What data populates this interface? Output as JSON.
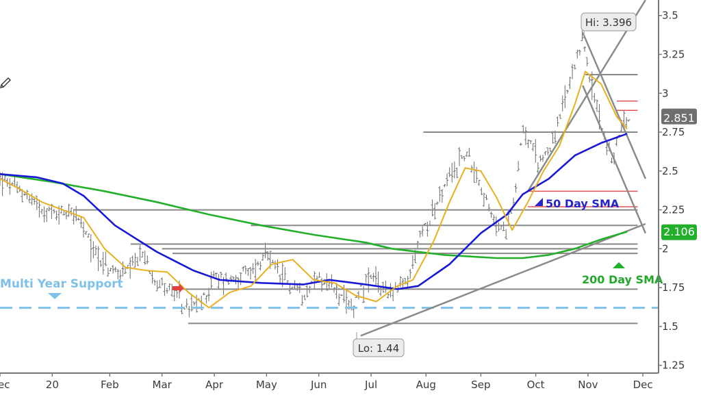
{
  "chart_data": {
    "type": "ohlc",
    "y_axis": {
      "min": 1.2,
      "max": 3.6,
      "position": "right",
      "ticks": [
        {
          "v": 1.25,
          "label": "1.25"
        },
        {
          "v": 1.5,
          "label": "1.5"
        },
        {
          "v": 1.75,
          "label": "1.75"
        },
        {
          "v": 2,
          "label": "2"
        },
        {
          "v": 2.25,
          "label": "2.25"
        },
        {
          "v": 2.5,
          "label": "2.5"
        },
        {
          "v": 2.75,
          "label": "2.75"
        },
        {
          "v": 3,
          "label": "3"
        },
        {
          "v": 3.25,
          "label": "3.25"
        },
        {
          "v": 3.5,
          "label": "3.5"
        }
      ]
    },
    "x_axis": {
      "min": 0,
      "max": 12.6,
      "labels": [
        {
          "v": 0,
          "label": "Dec"
        },
        {
          "v": 1,
          "label": "20"
        },
        {
          "v": 2.1,
          "label": "Feb"
        },
        {
          "v": 3.1,
          "label": "Mar"
        },
        {
          "v": 4.1,
          "label": "Apr"
        },
        {
          "v": 5.1,
          "label": "May"
        },
        {
          "v": 6.1,
          "label": "Jun"
        },
        {
          "v": 7.1,
          "label": "Jul"
        },
        {
          "v": 8.15,
          "label": "Aug"
        },
        {
          "v": 9.2,
          "label": "Sep"
        },
        {
          "v": 10.25,
          "label": "Oct"
        },
        {
          "v": 11.25,
          "label": "Nov"
        },
        {
          "v": 12.3,
          "label": "Dec"
        }
      ]
    },
    "price_path": [
      [
        0,
        2.45
      ],
      [
        0.5,
        2.35
      ],
      [
        1,
        2.22
      ],
      [
        1.4,
        2.25
      ],
      [
        1.7,
        2.05
      ],
      [
        2.1,
        1.85
      ],
      [
        2.5,
        1.85
      ],
      [
        2.7,
        1.97
      ],
      [
        3,
        1.8
      ],
      [
        3.3,
        1.72
      ],
      [
        3.6,
        1.6
      ],
      [
        3.9,
        1.68
      ],
      [
        4.1,
        1.82
      ],
      [
        4.4,
        1.8
      ],
      [
        4.8,
        1.85
      ],
      [
        5.1,
        1.95
      ],
      [
        5.4,
        1.8
      ],
      [
        5.8,
        1.72
      ],
      [
        6.1,
        1.82
      ],
      [
        6.4,
        1.74
      ],
      [
        6.7,
        1.6
      ],
      [
        6.9,
        1.75
      ],
      [
        7.1,
        1.8
      ],
      [
        7.5,
        1.72
      ],
      [
        7.8,
        1.78
      ],
      [
        8.05,
        2.1
      ],
      [
        8.3,
        2.25
      ],
      [
        8.6,
        2.45
      ],
      [
        8.9,
        2.62
      ],
      [
        9.1,
        2.5
      ],
      [
        9.4,
        2.2
      ],
      [
        9.65,
        2.1
      ],
      [
        9.85,
        2.35
      ],
      [
        10,
        2.78
      ],
      [
        10.3,
        2.55
      ],
      [
        10.6,
        2.7
      ],
      [
        10.8,
        2.95
      ],
      [
        11.05,
        3.2
      ],
      [
        11.15,
        3.39
      ],
      [
        11.3,
        3.05
      ],
      [
        11.5,
        2.82
      ],
      [
        11.7,
        2.55
      ],
      [
        11.9,
        2.8
      ],
      [
        12.05,
        2.85
      ]
    ],
    "series": [
      {
        "name": "50 Day SMA",
        "color": "#1818d8",
        "x": [
          0,
          0.7,
          1.2,
          1.6,
          2.2,
          3,
          3.7,
          4.2,
          5,
          5.8,
          6.3,
          7,
          7.6,
          8,
          8.6,
          9.2,
          9.7,
          10,
          10.5,
          11,
          11.5,
          12
        ],
        "y": [
          2.48,
          2.46,
          2.42,
          2.34,
          2.15,
          1.98,
          1.86,
          1.8,
          1.78,
          1.77,
          1.8,
          1.77,
          1.74,
          1.76,
          1.9,
          2.1,
          2.22,
          2.35,
          2.45,
          2.6,
          2.68,
          2.74
        ]
      },
      {
        "name": "",
        "color": "#e8b020",
        "x": [
          0,
          0.4,
          0.8,
          1.2,
          1.6,
          2,
          2.4,
          2.8,
          3.2,
          3.6,
          4,
          4.4,
          4.8,
          5.2,
          5.6,
          6,
          6.4,
          6.8,
          7.2,
          7.6,
          7.9,
          8.3,
          8.6,
          8.9,
          9.2,
          9.5,
          9.8,
          10.1,
          10.4,
          10.7,
          11,
          11.2,
          11.5,
          11.8,
          12
        ],
        "y": [
          2.45,
          2.38,
          2.3,
          2.25,
          2.2,
          2.0,
          1.88,
          1.86,
          1.85,
          1.72,
          1.62,
          1.72,
          1.76,
          1.9,
          1.93,
          1.8,
          1.78,
          1.7,
          1.66,
          1.76,
          1.8,
          2.05,
          2.3,
          2.52,
          2.5,
          2.33,
          2.12,
          2.3,
          2.5,
          2.66,
          2.93,
          3.14,
          3.06,
          2.85,
          2.77
        ]
      },
      {
        "name": "200 Day SMA",
        "color": "#22b02a",
        "x": [
          0,
          1,
          2,
          3,
          4,
          5,
          6,
          7,
          7.5,
          8,
          8.5,
          9,
          9.5,
          10,
          10.5,
          11,
          11.5,
          12
        ],
        "y": [
          2.48,
          2.43,
          2.37,
          2.3,
          2.22,
          2.15,
          2.09,
          2.04,
          2.0,
          1.98,
          1.96,
          1.95,
          1.94,
          1.94,
          1.96,
          2.0,
          2.06,
          2.11
        ]
      }
    ],
    "horizontal_lines": [
      {
        "y": 2.75,
        "x1": 8.1,
        "x2": 12.2,
        "color": "#888888"
      },
      {
        "y": 3.12,
        "x1": 11.2,
        "x2": 12.2,
        "color": "#888888"
      },
      {
        "y": 2.25,
        "x1": 1.4,
        "x2": 12.2,
        "color": "#888888"
      },
      {
        "y": 2.15,
        "x1": 4.8,
        "x2": 12.2,
        "color": "#888888"
      },
      {
        "y": 2.03,
        "x1": 2.5,
        "x2": 12.2,
        "color": "#888888"
      },
      {
        "y": 2.0,
        "x1": 3.1,
        "x2": 12.2,
        "color": "#888888"
      },
      {
        "y": 1.97,
        "x1": 3.3,
        "x2": 12.2,
        "color": "#888888"
      },
      {
        "y": 1.74,
        "x1": 3.3,
        "x2": 12.2,
        "color": "#888888"
      },
      {
        "y": 1.52,
        "x1": 3.6,
        "x2": 12.2,
        "color": "#888888"
      },
      {
        "y": 2.95,
        "x1": 11.8,
        "x2": 12.2,
        "color": "#e05050"
      },
      {
        "y": 2.89,
        "x1": 11.8,
        "x2": 12.2,
        "color": "#e05050"
      },
      {
        "y": 2.37,
        "x1": 10.1,
        "x2": 12.2,
        "color": "#e05050"
      },
      {
        "y": 2.27,
        "x1": 10.1,
        "x2": 12.2,
        "color": "#e05050"
      }
    ],
    "support_line": {
      "y": 1.62,
      "color": "#7ec0e8",
      "label": "Multi Year Support"
    },
    "trend_lines": [
      {
        "p1": [
          6.9,
          1.44
        ],
        "p2": [
          12.35,
          2.16
        ]
      },
      {
        "p1": [
          10.1,
          2.37
        ],
        "p2": [
          12.35,
          3.6
        ]
      },
      {
        "p1": [
          11.15,
          3.39
        ],
        "p2": [
          12.35,
          2.45
        ]
      },
      {
        "p1": [
          11.15,
          3.05
        ],
        "p2": [
          12.35,
          2.1
        ]
      }
    ],
    "annotations": [
      {
        "text": "Hi: 3.396",
        "x": 11.5,
        "y": 3.48
      },
      {
        "text": "Lo: 1.44",
        "x": 7.1,
        "y": 1.37
      }
    ],
    "series_labels": [
      {
        "text": "50 Day SMA",
        "x": 10.35,
        "y": 2.28,
        "color": "#2424c8"
      },
      {
        "text": "200 Day SMA",
        "x": 11.05,
        "y": 1.75,
        "color": "#22a82a"
      }
    ],
    "last_price_badge": {
      "value": "2.851",
      "y": 2.851,
      "color": "#6f6f6f"
    },
    "sma200_badge": {
      "value": "2.106",
      "y": 2.106,
      "color": "#22b02a"
    }
  }
}
